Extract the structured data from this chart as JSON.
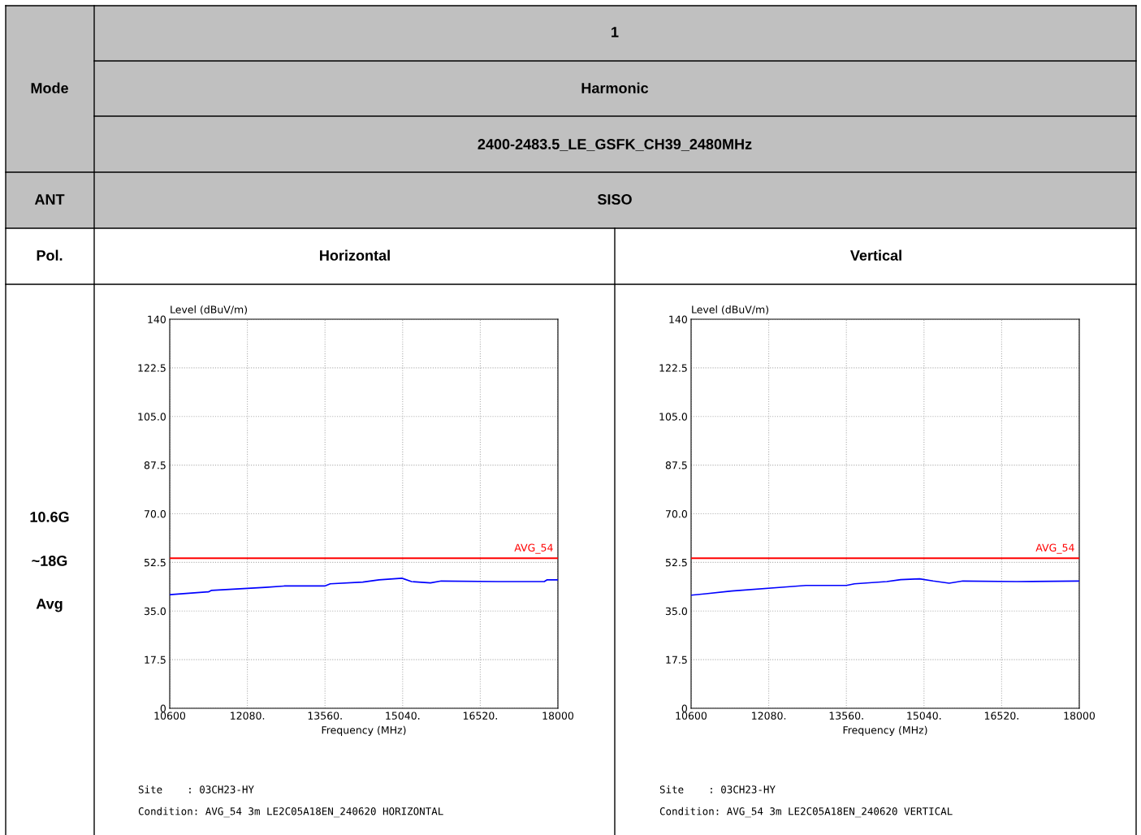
{
  "chart_data": [
    {
      "type": "other",
      "annotations": [
        "Mode",
        "1",
        "Harmonic",
        "2400-2483.5_LE_GSFK_CH39_2480MHz",
        "ANT",
        "SISO",
        "Pol.",
        "10.6G",
        "~18G",
        "Avg"
      ]
    },
    {
      "type": "line",
      "title": "Horizontal",
      "xlabel": "Frequency (MHz)",
      "ylabel": "Level (dBuV/m)",
      "xlim": [
        10600,
        18000
      ],
      "ylim": [
        0,
        140
      ],
      "xticks": [
        10600,
        {
          "value": 12080,
          "label": "12080."
        },
        {
          "value": 13560,
          "label": "13560."
        },
        {
          "value": 15040,
          "label": "15040."
        },
        {
          "value": 16520,
          "label": "16520."
        },
        18000
      ],
      "yticks": [
        0,
        17.5,
        {
          "value": 35,
          "label": "35.0"
        },
        52.5,
        {
          "value": 70,
          "label": "70.0"
        },
        87.5,
        {
          "value": 105,
          "label": "105.0"
        },
        122.5,
        140
      ],
      "grid": true,
      "series": [
        {
          "color": "#0000ff",
          "x": [
            10600,
            11338,
            11390,
            12422,
            12780,
            13556,
            13660,
            14280,
            14590,
            15028,
            15210,
            15570,
            15776,
            16860,
            17740,
            17790,
            18000
          ],
          "values": [
            40.9,
            41.9,
            42.4,
            43.5,
            44.0,
            44.0,
            44.8,
            45.4,
            46.2,
            46.8,
            45.6,
            45.1,
            45.8,
            45.6,
            45.6,
            46.2,
            46.2
          ]
        }
      ],
      "ref_lines": [
        {
          "axis": "y",
          "value": 54,
          "label": "AVG_54",
          "color": "#ff0000"
        }
      ],
      "annotations": [
        "Site    : 03CH23-HY",
        "Condition: AVG_54 3m LE2C05A18EN_240620 HORIZONTAL"
      ]
    },
    {
      "type": "line",
      "title": "Vertical",
      "xlabel": "Frequency (MHz)",
      "ylabel": "Level (dBuV/m)",
      "xlim": [
        10600,
        18000
      ],
      "ylim": [
        0,
        140
      ],
      "xticks": [
        10600,
        {
          "value": 12080,
          "label": "12080."
        },
        {
          "value": 13560,
          "label": "13560."
        },
        {
          "value": 15040,
          "label": "15040."
        },
        {
          "value": 16520,
          "label": "16520."
        },
        18000
      ],
      "yticks": [
        0,
        17.5,
        {
          "value": 35,
          "label": "35.0"
        },
        52.5,
        {
          "value": 70,
          "label": "70.0"
        },
        87.5,
        {
          "value": 105,
          "label": "105.0"
        },
        122.5,
        140
      ],
      "grid": true,
      "series": [
        {
          "color": "#0000ff",
          "x": [
            10600,
            10880,
            11370,
            12430,
            12790,
            13560,
            13715,
            14330,
            14595,
            14955,
            15215,
            15520,
            15780,
            16810,
            17950,
            18000
          ],
          "values": [
            40.7,
            41.2,
            42.2,
            43.7,
            44.2,
            44.2,
            44.8,
            45.6,
            46.3,
            46.6,
            45.8,
            45.0,
            45.8,
            45.6,
            45.8,
            45.8
          ]
        }
      ],
      "ref_lines": [
        {
          "axis": "y",
          "value": 54,
          "label": "AVG_54",
          "color": "#ff0000"
        }
      ],
      "annotations": [
        "Site    : 03CH23-HY",
        "Condition: AVG_54 3m LE2C05A18EN_240620 VERTICAL"
      ]
    }
  ]
}
